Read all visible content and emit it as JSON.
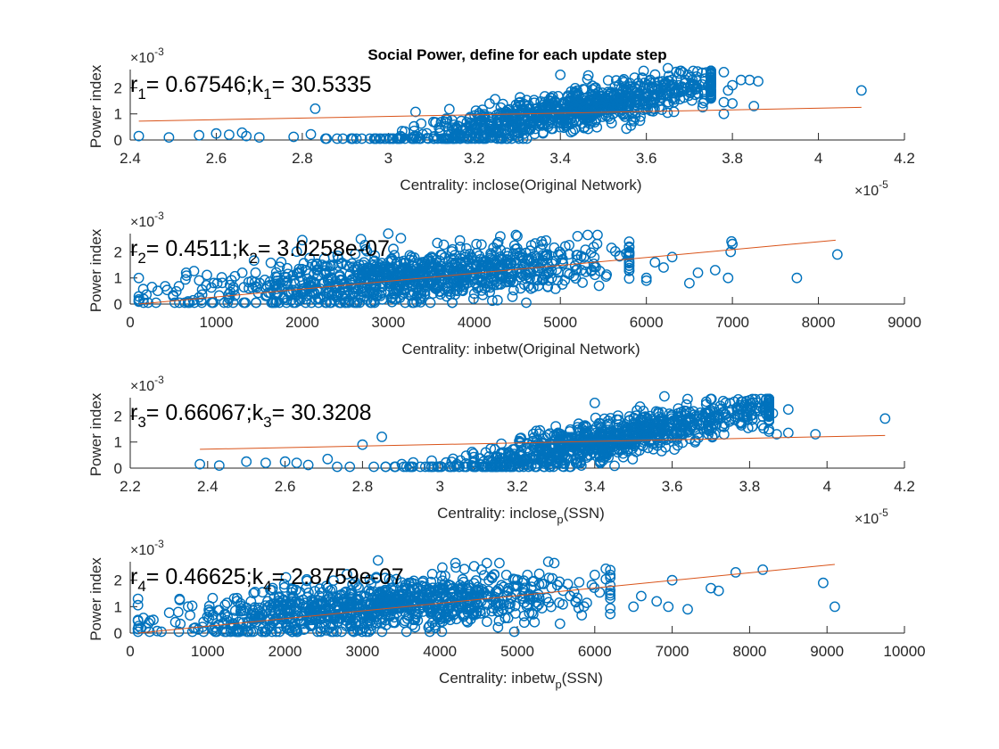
{
  "title": "Social Power, define for each update step",
  "colors": {
    "points": "#0072bd",
    "fit": "#d95319",
    "axis": "#262626"
  },
  "chart_data": [
    {
      "type": "scatter",
      "xlabel": "Centrality: inclose(Original Network)",
      "xlabel_main": "Centrality: inclose(Original Network)",
      "xlabel_sub": "",
      "xlabel_tail": "",
      "ylabel": "Power index",
      "xlim": [
        2.4,
        4.2
      ],
      "ylim": [
        0,
        2.7
      ],
      "xticks": [
        2.4,
        2.6,
        2.8,
        3.0,
        3.2,
        3.4,
        3.6,
        3.8,
        4.0,
        4.2
      ],
      "xtick_labels": [
        "2.4",
        "2.6",
        "2.8",
        "3",
        "3.2",
        "3.4",
        "3.6",
        "3.8",
        "4",
        "4.2"
      ],
      "yticks": [
        0,
        1,
        2
      ],
      "ytick_labels": [
        "0",
        "1",
        "2"
      ],
      "x_exponent": "×10",
      "x_exponent_power": "-5",
      "y_exponent": "×10",
      "y_exponent_power": "-3",
      "fit": {
        "x": [
          2.42,
          4.1
        ],
        "y": [
          0.72,
          1.25
        ]
      },
      "annotation": {
        "r_sym": "r",
        "r_sub": "1",
        "r_val": "= 0.67546;",
        "k_sym": "k",
        "k_sub": "1",
        "k_val": "= 30.5335"
      },
      "gen": {
        "n": 950,
        "x_center": 3.42,
        "x_spread": 0.2,
        "x_min": 2.45,
        "x_max": 3.75,
        "slope": 3.3,
        "y_at_center": 1.15,
        "noise": 0.38,
        "seed": 11
      },
      "extra_points": [
        [
          2.42,
          0.15
        ],
        [
          2.49,
          0.1
        ],
        [
          2.56,
          0.18
        ],
        [
          2.6,
          0.25
        ],
        [
          2.63,
          0.2
        ],
        [
          2.67,
          0.15
        ],
        [
          2.7,
          0.1
        ],
        [
          2.66,
          0.28
        ],
        [
          2.78,
          0.12
        ],
        [
          2.83,
          1.2
        ],
        [
          2.82,
          0.22
        ],
        [
          3.78,
          2.6
        ],
        [
          3.8,
          2.1
        ],
        [
          3.82,
          2.3
        ],
        [
          3.84,
          2.3
        ],
        [
          3.86,
          2.25
        ],
        [
          3.78,
          1.45
        ],
        [
          3.8,
          1.4
        ],
        [
          3.85,
          1.3
        ],
        [
          3.79,
          1.9
        ],
        [
          4.1,
          1.9
        ],
        [
          3.78,
          1.0
        ],
        [
          3.4,
          2.5
        ],
        [
          3.65,
          2.75
        ]
      ]
    },
    {
      "type": "scatter",
      "xlabel": "Centrality: inbetw(Original Network)",
      "xlabel_main": "Centrality: inbetw(Original Network)",
      "xlabel_sub": "",
      "xlabel_tail": "",
      "ylabel": "Power index",
      "xlim": [
        0,
        9000
      ],
      "ylim": [
        0,
        2.7
      ],
      "xticks": [
        0,
        1000,
        2000,
        3000,
        4000,
        5000,
        6000,
        7000,
        8000,
        9000
      ],
      "xtick_labels": [
        "0",
        "1000",
        "2000",
        "3000",
        "4000",
        "5000",
        "6000",
        "7000",
        "8000",
        "9000"
      ],
      "yticks": [
        0,
        1,
        2
      ],
      "ytick_labels": [
        "0",
        "1",
        "2"
      ],
      "x_exponent": "",
      "x_exponent_power": "",
      "y_exponent": "×10",
      "y_exponent_power": "-3",
      "fit": {
        "x": [
          100,
          8200
        ],
        "y": [
          0.0,
          2.45
        ]
      },
      "annotation": {
        "r_sym": "r",
        "r_sub": "2",
        "r_val": "= 0.4511;",
        "k_sym": "k",
        "k_sub": "2",
        "k_val": "= 3.0258e-07"
      },
      "gen": {
        "n": 1000,
        "x_center": 3200,
        "x_spread": 1200,
        "x_min": 100,
        "x_max": 5800,
        "slope": 0.00025,
        "y_at_center": 1.0,
        "noise": 0.5,
        "seed": 23
      },
      "extra_points": [
        [
          100,
          0.12
        ],
        [
          300,
          0.05
        ],
        [
          500,
          0.3
        ],
        [
          650,
          1.2
        ],
        [
          6000,
          1.0
        ],
        [
          6200,
          1.4
        ],
        [
          6300,
          1.8
        ],
        [
          6500,
          0.8
        ],
        [
          6600,
          1.2
        ],
        [
          6800,
          1.3
        ],
        [
          6950,
          1.0
        ],
        [
          6980,
          2.0
        ],
        [
          7000,
          2.3
        ],
        [
          6990,
          2.4
        ],
        [
          7750,
          1.0
        ],
        [
          8220,
          1.9
        ],
        [
          5800,
          2.2
        ],
        [
          5200,
          2.6
        ],
        [
          4500,
          2.6
        ],
        [
          3000,
          2.7
        ],
        [
          2000,
          2.45
        ],
        [
          6100,
          1.6
        ],
        [
          6000,
          0.9
        ]
      ]
    },
    {
      "type": "scatter",
      "xlabel": "Centrality: inclose_p(SSN)",
      "xlabel_main": "Centrality: inclose",
      "xlabel_sub": "p",
      "xlabel_tail": "(SSN)",
      "ylabel": "Power index",
      "xlim": [
        2.2,
        4.2
      ],
      "ylim": [
        0,
        2.7
      ],
      "xticks": [
        2.2,
        2.4,
        2.6,
        2.8,
        3.0,
        3.2,
        3.4,
        3.6,
        3.8,
        4.0,
        4.2
      ],
      "xtick_labels": [
        "2.2",
        "2.4",
        "2.6",
        "2.8",
        "3",
        "3.2",
        "3.4",
        "3.6",
        "3.8",
        "4",
        "4.2"
      ],
      "yticks": [
        0,
        1,
        2
      ],
      "ytick_labels": [
        "0",
        "1",
        "2"
      ],
      "x_exponent": "×10",
      "x_exponent_power": "-5",
      "y_exponent": "×10",
      "y_exponent_power": "-3",
      "fit": {
        "x": [
          2.38,
          4.15
        ],
        "y": [
          0.72,
          1.25
        ]
      },
      "annotation": {
        "r_sym": "r",
        "r_sub": "3",
        "r_val": "= 0.66067;",
        "k_sym": "k",
        "k_sub": "3",
        "k_val": "= 30.3208"
      },
      "gen": {
        "n": 950,
        "x_center": 3.45,
        "x_spread": 0.22,
        "x_min": 2.7,
        "x_max": 3.85,
        "slope": 3.0,
        "y_at_center": 1.15,
        "noise": 0.38,
        "seed": 37
      },
      "extra_points": [
        [
          2.38,
          0.15
        ],
        [
          2.43,
          0.1
        ],
        [
          2.5,
          0.25
        ],
        [
          2.55,
          0.2
        ],
        [
          2.6,
          0.25
        ],
        [
          2.63,
          0.2
        ],
        [
          2.66,
          0.12
        ],
        [
          2.71,
          0.35
        ],
        [
          2.8,
          0.9
        ],
        [
          2.85,
          1.2
        ],
        [
          3.4,
          2.5
        ],
        [
          3.58,
          2.75
        ],
        [
          3.8,
          2.6
        ],
        [
          3.84,
          2.3
        ],
        [
          3.86,
          2.1
        ],
        [
          3.9,
          2.25
        ],
        [
          3.85,
          1.4
        ],
        [
          3.87,
          1.3
        ],
        [
          3.9,
          1.35
        ],
        [
          3.97,
          1.3
        ],
        [
          4.15,
          1.9
        ]
      ]
    },
    {
      "type": "scatter",
      "xlabel": "Centrality: inbetw_p(SSN)",
      "xlabel_main": "Centrality: inbetw",
      "xlabel_sub": "p",
      "xlabel_tail": "(SSN)",
      "ylabel": "Power index",
      "xlim": [
        0,
        10000
      ],
      "ylim": [
        0,
        2.7
      ],
      "xticks": [
        0,
        1000,
        2000,
        3000,
        4000,
        5000,
        6000,
        7000,
        8000,
        9000,
        10000
      ],
      "xtick_labels": [
        "0",
        "1000",
        "2000",
        "3000",
        "4000",
        "5000",
        "6000",
        "7000",
        "8000",
        "9000",
        "10000"
      ],
      "yticks": [
        0,
        1,
        2
      ],
      "ytick_labels": [
        "0",
        "1",
        "2"
      ],
      "x_exponent": "",
      "x_exponent_power": "",
      "y_exponent": "×10",
      "y_exponent_power": "-3",
      "fit": {
        "x": [
          100,
          9100
        ],
        "y": [
          0.0,
          2.6
        ]
      },
      "annotation": {
        "r_sym": "r",
        "r_sub": "4",
        "r_val": "= 0.46625;",
        "k_sym": "k",
        "k_sub": "4",
        "k_val": "= 2.8759e-07"
      },
      "gen": {
        "n": 1000,
        "x_center": 3200,
        "x_spread": 1300,
        "x_min": 100,
        "x_max": 6200,
        "slope": 0.00022,
        "y_at_center": 1.0,
        "noise": 0.5,
        "seed": 51
      },
      "extra_points": [
        [
          100,
          0.15
        ],
        [
          200,
          0.2
        ],
        [
          300,
          0.5
        ],
        [
          6500,
          1.0
        ],
        [
          6800,
          1.2
        ],
        [
          6950,
          1.0
        ],
        [
          7000,
          2.0
        ],
        [
          7200,
          0.9
        ],
        [
          7500,
          1.7
        ],
        [
          7600,
          1.6
        ],
        [
          7820,
          2.3
        ],
        [
          8170,
          2.4
        ],
        [
          8950,
          1.9
        ],
        [
          9100,
          1.0
        ],
        [
          6000,
          2.2
        ],
        [
          5400,
          2.7
        ],
        [
          4200,
          2.65
        ],
        [
          3200,
          2.75
        ],
        [
          6200,
          2.2
        ],
        [
          6600,
          1.4
        ]
      ]
    }
  ]
}
